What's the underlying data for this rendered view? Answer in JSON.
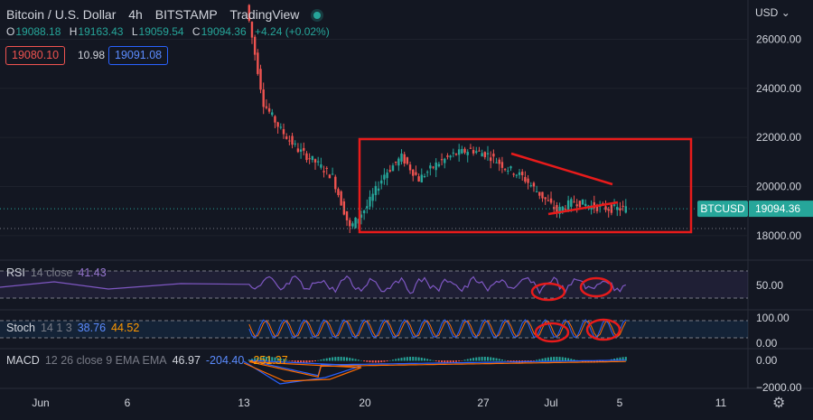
{
  "header": {
    "symbol": "Bitcoin / U.S. Dollar",
    "interval": "4h",
    "exchange": "BITSTAMP",
    "provider": "TradingView"
  },
  "ohlc": {
    "o_label": "O",
    "o": "19088.18",
    "h_label": "H",
    "h": "19163.43",
    "l_label": "L",
    "l": "19059.54",
    "c_label": "C",
    "c": "19094.36",
    "change": "+4.24 (+0.02%)"
  },
  "order": {
    "sell": "19080.10",
    "spread": "10.98",
    "buy": "19091.08"
  },
  "price_axis": {
    "currency": "USD",
    "ticks": [
      "26000.00",
      "24000.00",
      "22000.00",
      "20000.00",
      "18000.00"
    ]
  },
  "last_price": {
    "symbol": "BTCUSD",
    "value": "19094.36"
  },
  "rsi": {
    "name": "RSI",
    "params": "14 close",
    "value": "41.43",
    "tick": "50.00"
  },
  "stoch": {
    "name": "Stoch",
    "params": "14 1 3",
    "k": "38.76",
    "d": "44.52",
    "ticks": [
      "100.00",
      "0.00"
    ]
  },
  "macd": {
    "name": "MACD",
    "params": "12 26 close 9 EMA EMA",
    "hist": "46.97",
    "macd": "-204.40",
    "signal": "-251.37",
    "ticks": [
      "0.00",
      "−2000.00"
    ]
  },
  "time_axis": {
    "labels": [
      "Jun",
      "6",
      "13",
      "20",
      "27",
      "Jul",
      "5",
      "11"
    ]
  },
  "colors": {
    "up": "#26a69a",
    "down": "#ef5350",
    "annotation": "#e81b1b",
    "rsi": "#7e57c2",
    "stoch_k": "#2962ff",
    "stoch_d": "#ff6d00",
    "macd": "#2962ff",
    "signal": "#ff6d00"
  },
  "chart_data": {
    "type": "candlestick",
    "anchors": [
      {
        "date": "2022-06-12",
        "close": 27400
      },
      {
        "date": "2022-06-13",
        "close": 23400
      },
      {
        "date": "2022-06-14",
        "close": 22300
      },
      {
        "date": "2022-06-15",
        "close": 21500
      },
      {
        "date": "2022-06-16",
        "close": 21000
      },
      {
        "date": "2022-06-17",
        "close": 20400
      },
      {
        "date": "2022-06-18",
        "close": 18300
      },
      {
        "date": "2022-06-19",
        "close": 19200
      },
      {
        "date": "2022-06-20",
        "close": 20500
      },
      {
        "date": "2022-06-21",
        "close": 21200
      },
      {
        "date": "2022-06-22",
        "close": 20300
      },
      {
        "date": "2022-06-23",
        "close": 20900
      },
      {
        "date": "2022-06-24",
        "close": 21300
      },
      {
        "date": "2022-06-25",
        "close": 21500
      },
      {
        "date": "2022-06-26",
        "close": 21300
      },
      {
        "date": "2022-06-27",
        "close": 20800
      },
      {
        "date": "2022-06-28",
        "close": 20400
      },
      {
        "date": "2022-06-29",
        "close": 19700
      },
      {
        "date": "2022-06-30",
        "close": 19000
      },
      {
        "date": "2022-07-01",
        "close": 19400
      },
      {
        "date": "2022-07-02",
        "close": 19200
      },
      {
        "date": "2022-07-03",
        "close": 19100
      },
      {
        "date": "2022-07-04",
        "close": 19094
      }
    ],
    "y_range": [
      17000,
      27600
    ],
    "rsi_range": [
      0,
      100
    ],
    "stoch_range": [
      0,
      100
    ],
    "macd_range": [
      -2300,
      300
    ]
  }
}
